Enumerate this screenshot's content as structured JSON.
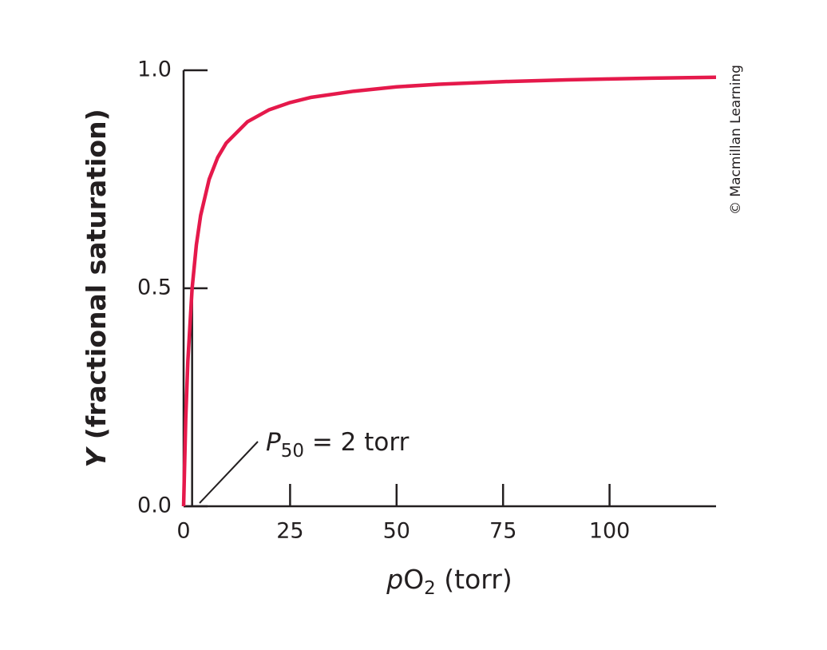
{
  "chart_data": {
    "type": "line",
    "x_label": {
      "italic": "p",
      "main": "O",
      "sub": "2",
      "rest": " (torr)"
    },
    "y_label": {
      "italic": "Y",
      "rest": " (fractional saturation)"
    },
    "annotation": {
      "italic": "P",
      "sub": "50",
      "rest": " = 2 torr",
      "x": 2
    },
    "credit": "© Macmillan Learning",
    "x": [
      0,
      0.5,
      1,
      2,
      3,
      4,
      6,
      8,
      10,
      15,
      20,
      25,
      30,
      40,
      50,
      60,
      75,
      90,
      100,
      110,
      125
    ],
    "series": [
      {
        "color": "#e5194b",
        "values": [
          0,
          0.2,
          0.333,
          0.5,
          0.6,
          0.667,
          0.75,
          0.8,
          0.833,
          0.882,
          0.909,
          0.926,
          0.938,
          0.952,
          0.962,
          0.968,
          0.974,
          0.978,
          0.98,
          0.982,
          0.984
        ]
      }
    ],
    "xlim": [
      0,
      125
    ],
    "ylim": [
      0,
      1
    ],
    "xticks": [
      0,
      25,
      50,
      75,
      100
    ],
    "yticks": [
      {
        "value": 0,
        "label": "0.0"
      },
      {
        "value": 0.5,
        "label": "0.5"
      },
      {
        "value": 1,
        "label": "1.0"
      }
    ]
  }
}
